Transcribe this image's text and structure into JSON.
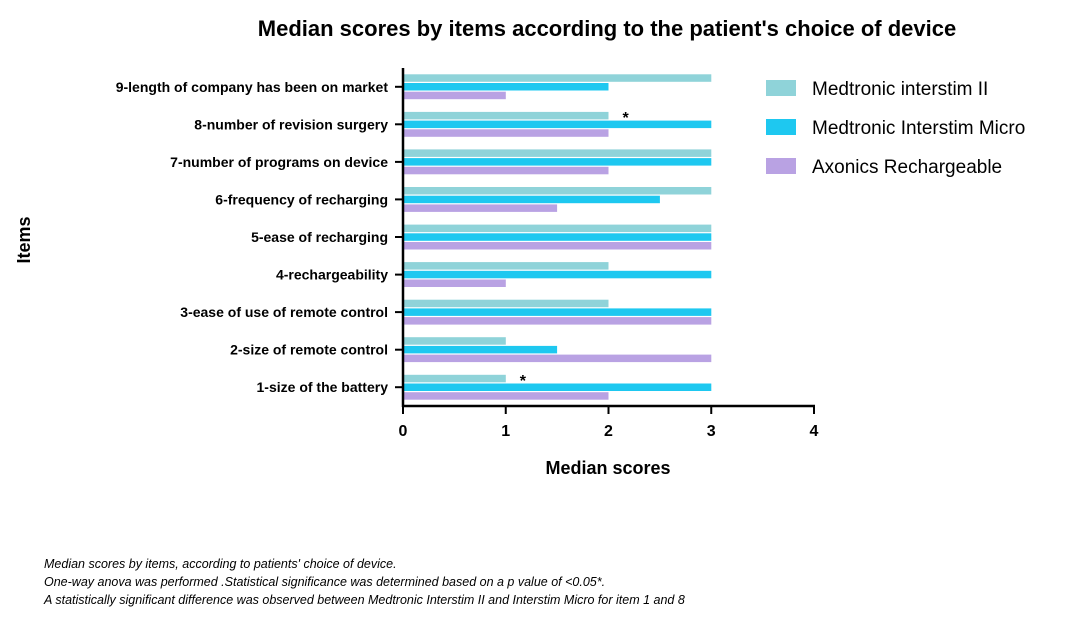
{
  "chart_data": {
    "type": "bar",
    "orientation": "horizontal",
    "title": "Median scores by items according to the patient's choice of device",
    "xlabel": "Median scores",
    "ylabel": "Items",
    "xlim": [
      0,
      4
    ],
    "xticks": [
      "0",
      "1",
      "2",
      "3",
      "4"
    ],
    "categories": [
      "9-length of company has been on market",
      "8-number of revision surgery",
      "7-number of programs on device",
      "6-frequency of recharging",
      "5-ease of recharging",
      "4-rechargeability",
      "3-ease of use of remote control",
      "2-size of remote control",
      "1-size of the battery"
    ],
    "series": [
      {
        "name": "Medtronic interstim II",
        "color": "#8fd3d9",
        "values": [
          3,
          2,
          3,
          3,
          3,
          2,
          2,
          1,
          1
        ]
      },
      {
        "name": "Medtronic Interstim Micro",
        "color": "#1ec8f0",
        "values": [
          2,
          3,
          3,
          2.5,
          3,
          3,
          3,
          1.5,
          3
        ]
      },
      {
        "name": "Axonics Rechargeable",
        "color": "#b9a2e3",
        "values": [
          1,
          2,
          2,
          1.5,
          3,
          1,
          3,
          3,
          2
        ]
      }
    ],
    "annotations": [
      {
        "text": "*",
        "category": "8-number of revision surgery"
      },
      {
        "text": "*",
        "category": "1-size of the battery"
      }
    ],
    "grid": false,
    "legend_position": "right"
  },
  "notes": [
    "Median scores by items, according to patients' choice of device.",
    "One-way anova was performed .Statistical significance was determined based on a p value of <0.05*.",
    "A statistically significant difference was observed between Medtronic Interstim II and Interstim Micro for item 1 and 8"
  ]
}
